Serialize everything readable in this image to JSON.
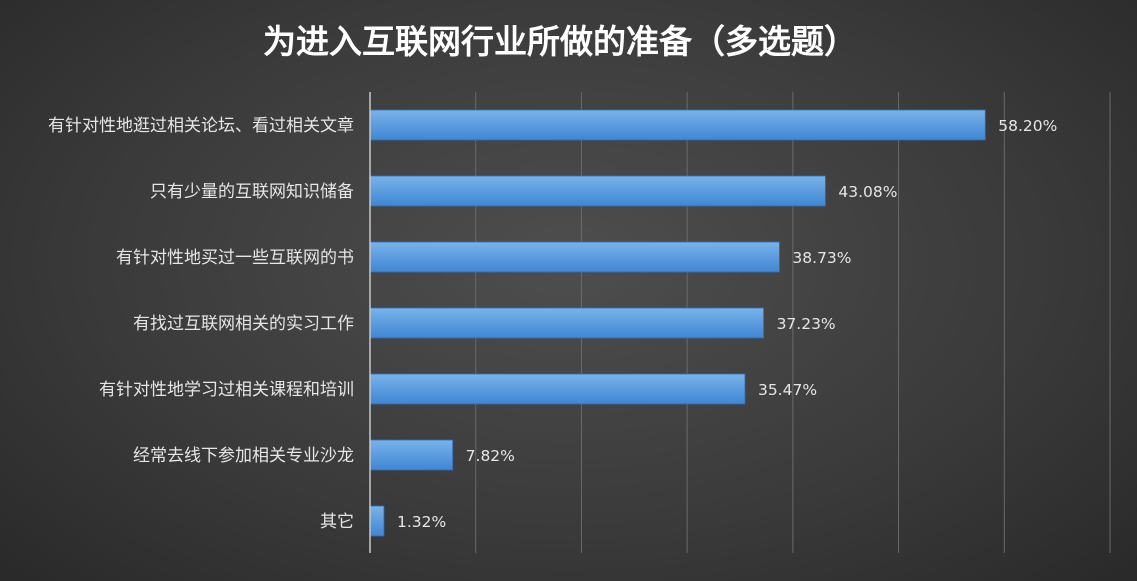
{
  "chart_data": {
    "type": "bar",
    "orientation": "horizontal",
    "title": "为进入互联网行业所做的准备（多选题）",
    "xlabel": "",
    "ylabel": "",
    "categories": [
      "有针对性地逛过相关论坛、看过相关文章",
      "只有少量的互联网知识储备",
      "有针对性地买过一些互联网的书",
      "有找过互联网相关的实习工作",
      "有针对性地学习过相关课程和培训",
      "经常去线下参加相关专业沙龙",
      "其它"
    ],
    "values": [
      58.2,
      43.08,
      38.73,
      37.23,
      35.47,
      7.82,
      1.32
    ],
    "value_labels": [
      "58.20%",
      "43.08%",
      "38.73%",
      "37.23%",
      "35.47%",
      "7.82%",
      "1.32%"
    ],
    "xlim": [
      0,
      70
    ],
    "gridlines": true,
    "x_tick_labels_shown": false,
    "legend": "none",
    "colors": {
      "bar_light": "#79b3ea",
      "bar_dark": "#3f86d4",
      "bar_edge": "#2f6fb8",
      "text": "#e6e6e6",
      "title": "#ffffff",
      "grid": "#6a6a6a",
      "axis": "#c8c8c8"
    }
  }
}
